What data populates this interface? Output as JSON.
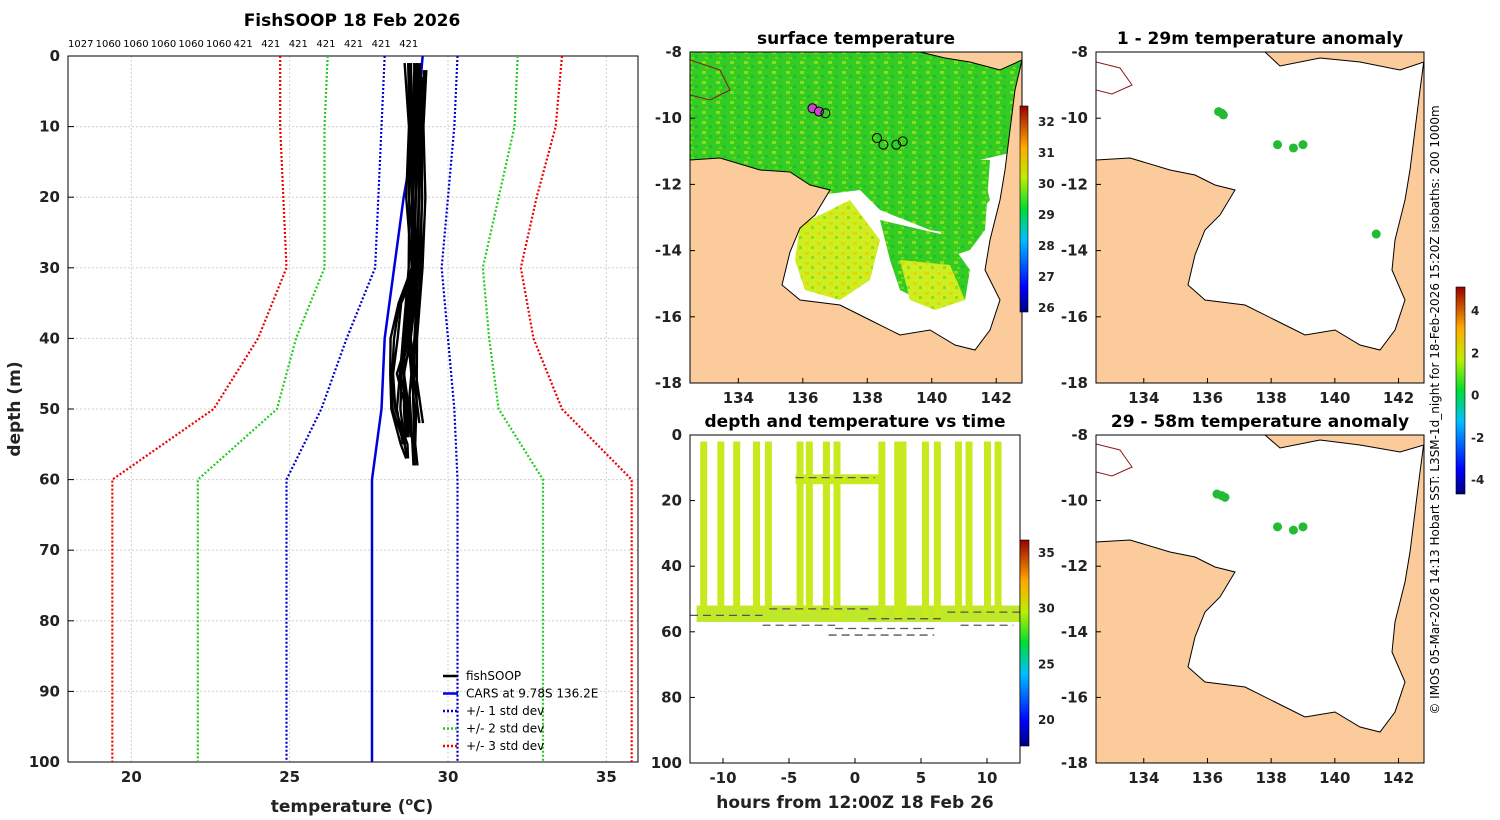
{
  "chart_data": [
    {
      "type": "line",
      "title": "FishSOOP 18 Feb 2026",
      "top_labels": [
        "1027",
        "1060",
        "1060",
        "1060",
        "1060",
        "1060",
        "421",
        "421",
        "421",
        "421",
        "421",
        "421",
        "421"
      ],
      "xlabel": "temperature (",
      "xlabel_sup": "o",
      "xlabel_end": "C)",
      "ylabel": "depth (m)",
      "xlim": [
        18,
        36
      ],
      "ylim": [
        100,
        0
      ],
      "xticks": [
        "20",
        "25",
        "30",
        "35"
      ],
      "yticks": [
        "0",
        "10",
        "20",
        "30",
        "40",
        "50",
        "60",
        "70",
        "80",
        "90",
        "100"
      ],
      "depth": [
        0,
        10,
        20,
        30,
        40,
        50,
        60,
        100
      ],
      "series": [
        {
          "name": "fishSOOP",
          "color": "#000000",
          "style": "solid"
        },
        {
          "name": "CARS at 9.78S 136.2E",
          "color": "#0000dd",
          "style": "solid",
          "temps": [
            29.2,
            29.0,
            28.6,
            28.3,
            28.0,
            27.9,
            27.6,
            27.6
          ]
        },
        {
          "name": "+/- 1 std dev",
          "color": "#0000cc",
          "style": "dotted",
          "lower": [
            28.0,
            27.9,
            27.8,
            27.7,
            26.8,
            26.0,
            24.9,
            24.9
          ],
          "upper": [
            30.3,
            30.2,
            30.0,
            29.8,
            30.0,
            30.2,
            30.3,
            30.3
          ]
        },
        {
          "name": "+/- 2 std dev",
          "color": "#22cc22",
          "style": "dotted",
          "lower": [
            26.2,
            26.1,
            26.1,
            26.1,
            25.2,
            24.6,
            22.1,
            22.1
          ],
          "upper": [
            32.2,
            32.1,
            31.6,
            31.1,
            31.3,
            31.6,
            33.0,
            33.0
          ]
        },
        {
          "name": "+/- 3 std dev",
          "color": "#ee0000",
          "style": "dotted",
          "lower": [
            24.7,
            24.7,
            24.8,
            24.9,
            24.0,
            22.6,
            19.4,
            19.4
          ],
          "upper": [
            33.6,
            33.4,
            32.8,
            32.3,
            32.7,
            33.6,
            35.8,
            35.8
          ]
        }
      ],
      "profiles": [
        {
          "depth": [
            1,
            10,
            20,
            30,
            35,
            40,
            45,
            50,
            55,
            57
          ],
          "temps": [
            28.7,
            28.8,
            28.8,
            28.9,
            28.5,
            28.3,
            28.2,
            28.3,
            28.6,
            28.7
          ]
        },
        {
          "depth": [
            1,
            10,
            20,
            30,
            40,
            45,
            50,
            54
          ],
          "temps": [
            29.0,
            29.1,
            29.1,
            29.0,
            28.8,
            28.5,
            28.7,
            28.8
          ]
        },
        {
          "depth": [
            2,
            10,
            20,
            30,
            40,
            48,
            55,
            58
          ],
          "temps": [
            29.2,
            29.2,
            29.2,
            29.1,
            29.0,
            28.9,
            28.9,
            29.0
          ]
        },
        {
          "depth": [
            1,
            10,
            20,
            30,
            42,
            50,
            55
          ],
          "temps": [
            28.9,
            28.9,
            28.9,
            28.8,
            28.6,
            28.5,
            28.6
          ]
        },
        {
          "depth": [
            3,
            10,
            20,
            30,
            40,
            52
          ],
          "temps": [
            29.1,
            29.0,
            29.0,
            28.9,
            28.8,
            29.1
          ]
        }
      ]
    },
    {
      "type": "heatmap",
      "title": "surface temperature",
      "xticks": [
        "134",
        "136",
        "138",
        "140",
        "142"
      ],
      "yticks": [
        "-8",
        "-10",
        "-12",
        "-14",
        "-16",
        "-18"
      ],
      "colorbar_ticks": [
        "32",
        "31",
        "30",
        "29",
        "28",
        "27",
        "26"
      ]
    },
    {
      "type": "scatter",
      "title": "depth and temperature vs time",
      "xlabel": "hours from 12:00Z 18 Feb 26",
      "xticks": [
        "-10",
        "-5",
        "0",
        "5",
        "10"
      ],
      "yticks": [
        "0",
        "20",
        "40",
        "60",
        "80",
        "100"
      ],
      "xlim": [
        -12.5,
        12.5
      ],
      "ylim": [
        100,
        0
      ],
      "colorbar_ticks": [
        "35",
        "30",
        "25",
        "20"
      ],
      "casts": [
        -11.5,
        -10.2,
        -9.0,
        -7.5,
        -6.6,
        -4.2,
        -3.5,
        -2.2,
        -1.4,
        2.0,
        3.2,
        3.6,
        5.3,
        6.2,
        7.8,
        8.6,
        10.0,
        10.8
      ],
      "bottom_depth": [
        54,
        54,
        53,
        54,
        54,
        55,
        54,
        55,
        56,
        55,
        56,
        55,
        56,
        57,
        55,
        54,
        55,
        54
      ]
    },
    {
      "type": "scatter",
      "title": "1 - 29m temperature anomaly",
      "xticks": [
        "134",
        "136",
        "138",
        "140",
        "142"
      ],
      "yticks": [
        "-8",
        "-10",
        "-12",
        "-14",
        "-16",
        "-18"
      ],
      "points": [
        [
          136.35,
          -9.8
        ],
        [
          136.45,
          -9.85
        ],
        [
          136.5,
          -9.9
        ],
        [
          138.2,
          -10.8
        ],
        [
          138.7,
          -10.9
        ],
        [
          139.0,
          -10.8
        ],
        [
          141.3,
          -13.5
        ]
      ]
    },
    {
      "type": "scatter",
      "title": "29 - 58m temperature anomaly",
      "xticks": [
        "134",
        "136",
        "138",
        "140",
        "142"
      ],
      "yticks": [
        "-8",
        "-10",
        "-12",
        "-14",
        "-16",
        "-18"
      ],
      "points": [
        [
          136.3,
          -9.8
        ],
        [
          136.45,
          -9.85
        ],
        [
          136.55,
          -9.9
        ],
        [
          138.2,
          -10.8
        ],
        [
          138.7,
          -10.9
        ],
        [
          139.0,
          -10.8
        ]
      ]
    },
    {
      "type": "colorbar",
      "ticks": [
        "4",
        "2",
        "0",
        "-2",
        "-4"
      ]
    }
  ],
  "credit": "© IMOS 05-Mar-2026 14:13 Hobart SST: L3SM-1d_night for 18-Feb-2026 15:20Z isobaths: 200  1000m"
}
